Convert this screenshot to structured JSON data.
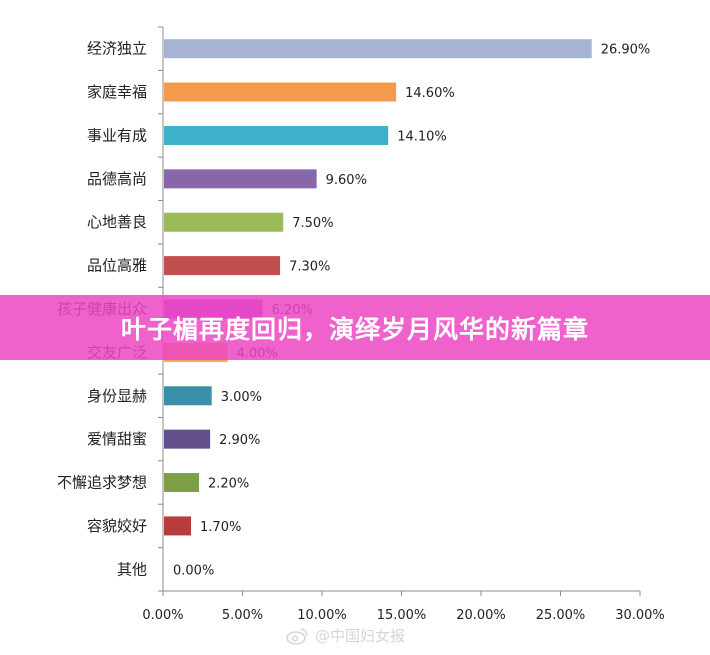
{
  "banner": {
    "text": "叶子楣再度回归，演绎岁月风华的新篇章"
  },
  "watermark": {
    "text": "@中国妇女报",
    "icon": "weibo-icon"
  },
  "chart_data": {
    "type": "bar",
    "orientation": "horizontal",
    "categories": [
      "经济独立",
      "家庭幸福",
      "事业有成",
      "品德高尚",
      "心地善良",
      "品位高雅",
      "孩子健康出众",
      "交友广泛",
      "身份显赫",
      "爱情甜蜜",
      "不懈追求梦想",
      "容貌姣好",
      "其他"
    ],
    "values": [
      26.9,
      14.6,
      14.1,
      9.6,
      7.5,
      7.3,
      6.2,
      4.0,
      3.0,
      2.9,
      2.2,
      1.7,
      0.0
    ],
    "data_labels": [
      "26.90%",
      "14.60%",
      "14.10%",
      "9.60%",
      "7.50%",
      "7.30%",
      "6.20%",
      "4.00%",
      "3.00%",
      "2.90%",
      "2.20%",
      "1.70%",
      "0.00%"
    ],
    "colors": [
      "#A6B3D3",
      "#F59A4C",
      "#3DB1C9",
      "#8767A9",
      "#9BBA59",
      "#C0504D",
      "#B94CD0",
      "#F4A24D",
      "#3B8FA9",
      "#65508E",
      "#7D9F48",
      "#B83C3C",
      "#4F81BD"
    ],
    "xlim": [
      0,
      30
    ],
    "xticks": [
      "0.00%",
      "5.00%",
      "10.00%",
      "15.00%",
      "20.00%",
      "25.00%",
      "30.00%"
    ],
    "xtick_values": [
      0,
      5,
      10,
      15,
      20,
      25,
      30
    ],
    "grid": false
  }
}
